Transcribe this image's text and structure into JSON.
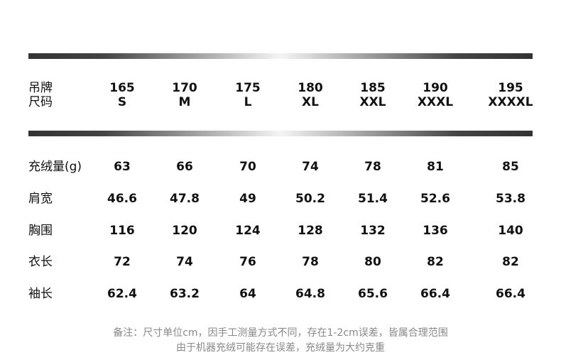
{
  "header": {
    "label_line1": "吊牌",
    "label_line2": "尺码",
    "columns": [
      {
        "height": "165",
        "size": "S"
      },
      {
        "height": "170",
        "size": "M"
      },
      {
        "height": "175",
        "size": "L"
      },
      {
        "height": "180",
        "size": "XL"
      },
      {
        "height": "185",
        "size": "XXL"
      },
      {
        "height": "190",
        "size": "XXXL"
      },
      {
        "height": "195",
        "size": "XXXXL"
      }
    ]
  },
  "rows": [
    {
      "label": "充绒量(g)",
      "values": [
        "63",
        "66",
        "70",
        "74",
        "78",
        "81",
        "85"
      ]
    },
    {
      "label": "肩宽",
      "values": [
        "46.6",
        "47.8",
        "49",
        "50.2",
        "51.4",
        "52.6",
        "53.8"
      ]
    },
    {
      "label": "胸围",
      "values": [
        "116",
        "120",
        "124",
        "128",
        "132",
        "136",
        "140"
      ]
    },
    {
      "label": "衣长",
      "values": [
        "72",
        "74",
        "76",
        "78",
        "80",
        "82",
        "82"
      ]
    },
    {
      "label": "袖长",
      "values": [
        "62.4",
        "63.2",
        "64",
        "64.8",
        "65.6",
        "66.4",
        "66.4"
      ]
    }
  ],
  "notes": {
    "line1": "备注：尺寸单位cm，因手工测量方式不同，存在1-2cm误差，皆属合理范围",
    "line2": "由于机器充绒可能存在误差，充绒量为大约克重"
  },
  "colors": {
    "bar_dark": "#333333",
    "bar_light": "#f5f5f5",
    "note_text": "#888888"
  }
}
